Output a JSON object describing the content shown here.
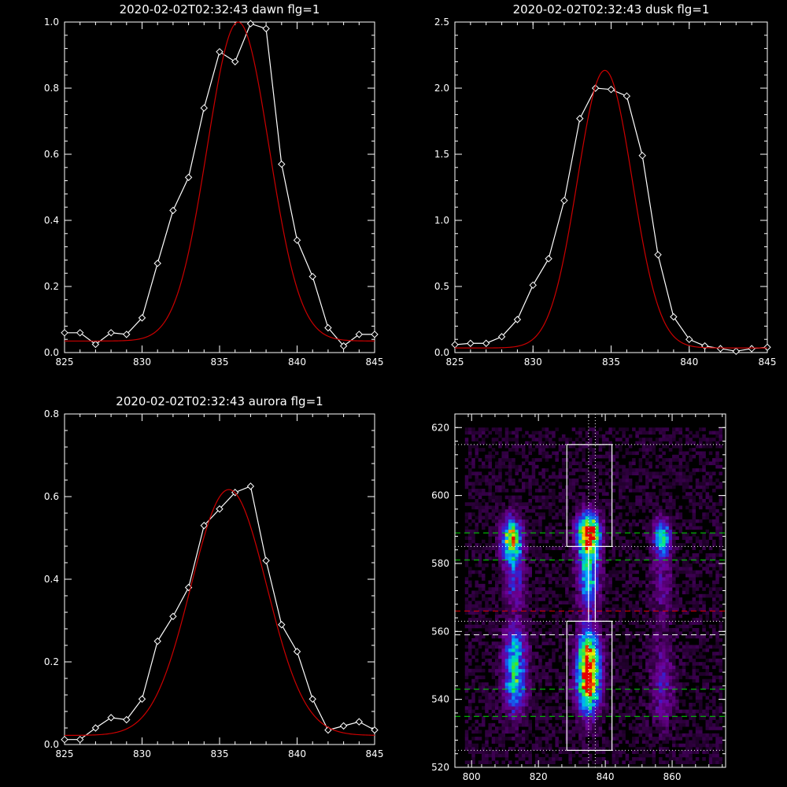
{
  "chart_data": [
    {
      "id": "dawn",
      "type": "line",
      "title": "2020-02-02T02:32:43 dawn flg=1",
      "xlim": [
        825,
        845
      ],
      "ylim": [
        0,
        1.0
      ],
      "xticks": [
        "825",
        "830",
        "835",
        "840",
        "845"
      ],
      "yticks": [
        "0.0",
        "0.2",
        "0.4",
        "0.6",
        "0.8",
        "1.0"
      ],
      "series": [
        {
          "color": "#ffffff",
          "marker": "diamond",
          "x": [
            825,
            826,
            827,
            828,
            829,
            830,
            831,
            832,
            833,
            834,
            835,
            836,
            837,
            838,
            839,
            840,
            841,
            842,
            843,
            844,
            845
          ],
          "y": [
            0.06,
            0.06,
            0.025,
            0.06,
            0.055,
            0.105,
            0.27,
            0.43,
            0.53,
            0.74,
            0.91,
            0.88,
            0.995,
            0.98,
            0.57,
            0.34,
            0.23,
            0.075,
            0.02,
            0.055,
            0.055
          ]
        },
        {
          "color": "#cc0000",
          "fit": {
            "amp": 0.965,
            "center": 836.2,
            "sigma": 2.0,
            "base": 0.035
          }
        }
      ]
    },
    {
      "id": "dusk",
      "type": "line",
      "title": "2020-02-02T02:32:43 dusk flg=1",
      "xlim": [
        825,
        845
      ],
      "ylim": [
        0,
        2.5
      ],
      "xticks": [
        "825",
        "830",
        "835",
        "840",
        "845"
      ],
      "yticks": [
        "0.0",
        "0.5",
        "1.0",
        "1.5",
        "2.0",
        "2.5"
      ],
      "series": [
        {
          "color": "#ffffff",
          "marker": "diamond",
          "x": [
            825,
            826,
            827,
            828,
            829,
            830,
            831,
            832,
            833,
            834,
            835,
            836,
            837,
            838,
            839,
            840,
            841,
            842,
            843,
            844,
            845
          ],
          "y": [
            0.06,
            0.07,
            0.07,
            0.12,
            0.25,
            0.51,
            0.71,
            1.15,
            1.77,
            2.0,
            1.99,
            1.94,
            1.49,
            0.74,
            0.27,
            0.1,
            0.05,
            0.03,
            0.01,
            0.03,
            0.04
          ]
        },
        {
          "color": "#cc0000",
          "fit": {
            "amp": 2.1,
            "center": 834.6,
            "sigma": 1.75,
            "base": 0.035
          }
        }
      ]
    },
    {
      "id": "aurora",
      "type": "line",
      "title": "2020-02-02T02:32:43 aurora flg=1",
      "xlim": [
        825,
        845
      ],
      "ylim": [
        0,
        0.8
      ],
      "xticks": [
        "825",
        "830",
        "835",
        "840",
        "845"
      ],
      "yticks": [
        "0.0",
        "0.2",
        "0.4",
        "0.6",
        "0.8"
      ],
      "series": [
        {
          "color": "#ffffff",
          "marker": "diamond",
          "x": [
            825,
            826,
            827,
            828,
            829,
            830,
            831,
            832,
            833,
            834,
            835,
            836,
            837,
            838,
            839,
            840,
            841,
            842,
            843,
            844,
            845
          ],
          "y": [
            0.012,
            0.012,
            0.04,
            0.065,
            0.06,
            0.11,
            0.25,
            0.31,
            0.38,
            0.53,
            0.57,
            0.61,
            0.625,
            0.445,
            0.29,
            0.225,
            0.11,
            0.035,
            0.045,
            0.055,
            0.035
          ]
        },
        {
          "color": "#cc0000",
          "fit": {
            "amp": 0.595,
            "center": 835.6,
            "sigma": 2.45,
            "base": 0.022
          }
        }
      ]
    },
    {
      "id": "spectrum-image",
      "type": "heatmap",
      "xlim": [
        795,
        876
      ],
      "ylim": [
        520,
        624
      ],
      "xticks": [
        "800",
        "820",
        "840",
        "860"
      ],
      "yticks": [
        "520",
        "540",
        "560",
        "580",
        "600",
        "620"
      ],
      "blobs": [
        {
          "x": 812,
          "y": 587,
          "sx": 2.2,
          "sy": 4.5,
          "amp": 0.8
        },
        {
          "x": 813,
          "y": 575,
          "sx": 2.2,
          "sy": 6.0,
          "amp": 0.3
        },
        {
          "x": 835,
          "y": 589,
          "sx": 2.3,
          "sy": 4.0,
          "amp": 1.0
        },
        {
          "x": 835,
          "y": 577,
          "sx": 2.3,
          "sy": 7.0,
          "amp": 0.55
        },
        {
          "x": 835,
          "y": 545,
          "sx": 2.4,
          "sy": 6.5,
          "amp": 0.95
        },
        {
          "x": 835,
          "y": 555,
          "sx": 2.4,
          "sy": 5.0,
          "amp": 0.5
        },
        {
          "x": 813,
          "y": 545,
          "sx": 2.3,
          "sy": 6.5,
          "amp": 0.55
        },
        {
          "x": 813,
          "y": 556,
          "sx": 2.3,
          "sy": 5.0,
          "amp": 0.35
        },
        {
          "x": 857,
          "y": 588,
          "sx": 1.8,
          "sy": 3.5,
          "amp": 0.55
        },
        {
          "x": 857,
          "y": 575,
          "sx": 2.2,
          "sy": 8.0,
          "amp": 0.2
        },
        {
          "x": 857,
          "y": 545,
          "sx": 2.5,
          "sy": 9.0,
          "amp": 0.25
        }
      ],
      "boxes": [
        {
          "x0": 828.5,
          "x1": 842,
          "y0": 585,
          "y1": 615,
          "color": "#ffffff"
        },
        {
          "x0": 828.5,
          "x1": 842,
          "y0": 525,
          "y1": 563,
          "color": "#ffffff"
        },
        {
          "x0": 835,
          "x1": 837,
          "y0": 563,
          "y1": 585,
          "color": "#ffffff"
        }
      ],
      "hlines": [
        {
          "y": 615,
          "style": "dotted",
          "color": "#ffffff"
        },
        {
          "y": 585,
          "style": "dotted",
          "color": "#ffffff"
        },
        {
          "y": 563,
          "style": "dotted",
          "color": "#ffffff"
        },
        {
          "y": 525,
          "style": "dotted",
          "color": "#ffffff"
        },
        {
          "y": 589,
          "style": "dashed",
          "color": "#00dd00"
        },
        {
          "y": 581,
          "style": "dashed",
          "color": "#00dd00"
        },
        {
          "y": 543,
          "style": "dashed",
          "color": "#00dd00"
        },
        {
          "y": 535,
          "style": "dashed",
          "color": "#00dd00"
        },
        {
          "y": 559,
          "style": "dashed",
          "color": "#ffffff"
        },
        {
          "y": 566,
          "style": "dashed",
          "color": "#dd0000"
        }
      ],
      "vlines": [
        {
          "x": 835,
          "style": "dotted",
          "color": "#ffffff"
        },
        {
          "x": 837,
          "style": "dotted",
          "color": "#ffffff"
        }
      ]
    }
  ]
}
